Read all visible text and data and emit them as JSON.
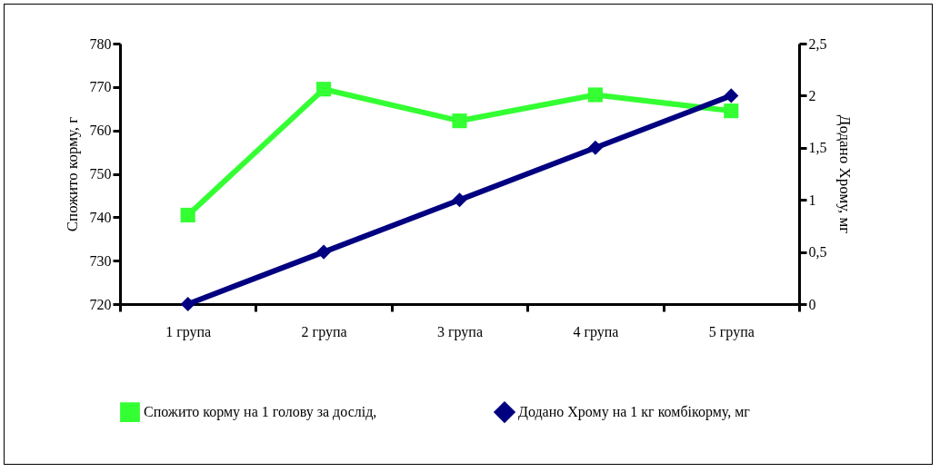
{
  "chart_data": {
    "type": "line",
    "ylabel": "Спожито корму, г",
    "y2label": "Додано Хрому, мг",
    "categories": [
      "1 група",
      "2 група",
      "3 група",
      "4 група",
      "5 група"
    ],
    "series": [
      {
        "name": "Спожито корму на 1 голову за дослід,",
        "color": "#33ff33",
        "marker": "square",
        "values": [
          740.5,
          769.5,
          762.2,
          768.2,
          764.5
        ]
      },
      {
        "name": "Додано Хрому на 1 кг комбікорму, мг",
        "color": "#000080",
        "marker": "diamond",
        "axis": "y2",
        "values": [
          0,
          0.5,
          1,
          1.5,
          2
        ]
      }
    ],
    "ylim": [
      720,
      780
    ],
    "yticks": [
      720,
      730,
      740,
      750,
      760,
      770,
      780
    ],
    "y2lim": [
      0,
      2.5
    ],
    "y2ticks": [
      0,
      {
        "value": 0.5,
        "label": "0,5"
      },
      1,
      {
        "value": 1.5,
        "label": "1,5"
      },
      2,
      {
        "value": 2.5,
        "label": "2,5"
      }
    ],
    "grid": false,
    "legend": "bottom",
    "line_style": "solid"
  }
}
